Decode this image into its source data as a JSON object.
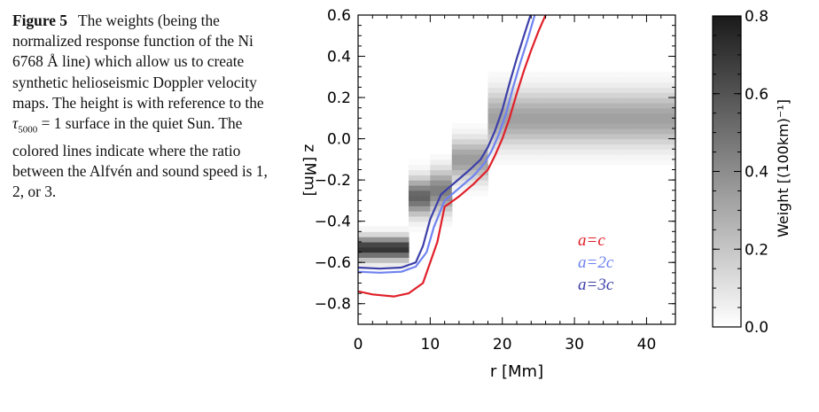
{
  "caption": {
    "label": "Figure 5",
    "part1": "The weights (being the normalized response function of the Ni 6768 Å line) which allow us to create synthetic helioseismic Doppler velocity maps. The height is with reference to the",
    "tau_symbol": "τ",
    "tau_sub": "5000",
    "tau_eq": " = 1 ",
    "part2": "surface in the quiet Sun. The colored lines indicate where the ratio between the Alfvén and sound speed is 1, 2, or 3."
  },
  "chart_data": [
    {
      "type": "heatmap",
      "title": "",
      "xlabel": "r [Mm]",
      "ylabel": "z [Mm]",
      "xlim": [
        0,
        44
      ],
      "ylim": [
        -0.9,
        0.6
      ],
      "xticks": [
        "0",
        "10",
        "20",
        "30",
        "40"
      ],
      "yticks": [
        "0.6",
        "0.4",
        "0.2",
        "0.0",
        "−0.2",
        "−0.4",
        "−0.6",
        "−0.8"
      ],
      "colormap": "white-to-black",
      "vmin": 0.0,
      "vmax": 0.8,
      "weight_regions": [
        {
          "r_range": [
            0,
            7.5
          ],
          "z_center": -0.53,
          "z_halfwidth": 0.05,
          "peak": 0.72
        },
        {
          "r_range": [
            7.5,
            10.5
          ],
          "z_center": -0.28,
          "z_halfwidth": 0.08,
          "peak": 0.55
        },
        {
          "r_range": [
            10.5,
            13
          ],
          "z_center": -0.25,
          "z_halfwidth": 0.09,
          "peak": 0.45
        },
        {
          "r_range": [
            13,
            18
          ],
          "z_center": -0.1,
          "z_halfwidth": 0.09,
          "peak": 0.35
        },
        {
          "r_range": [
            18,
            44
          ],
          "z_center": 0.1,
          "z_halfwidth": 0.12,
          "peak": 0.33
        }
      ],
      "series": [
        {
          "label": "a=c",
          "color": "#e0202a",
          "r": [
            0,
            2,
            5,
            7,
            9,
            11,
            12,
            14,
            16,
            18,
            19,
            20,
            21,
            22,
            23,
            24,
            25,
            26
          ],
          "z": [
            -0.74,
            -0.755,
            -0.765,
            -0.75,
            -0.7,
            -0.5,
            -0.33,
            -0.28,
            -0.22,
            -0.15,
            -0.08,
            0.0,
            0.1,
            0.22,
            0.33,
            0.43,
            0.52,
            0.6
          ]
        },
        {
          "label": "a=2c",
          "color": "#6f82f0",
          "r": [
            0,
            3,
            6,
            8,
            9.5,
            10.5,
            12,
            14,
            16,
            17.5,
            18.5,
            19.5,
            20.5,
            21.5,
            22.5,
            23.5,
            24.5
          ],
          "z": [
            -0.645,
            -0.65,
            -0.645,
            -0.62,
            -0.55,
            -0.43,
            -0.3,
            -0.24,
            -0.18,
            -0.12,
            -0.06,
            0.02,
            0.12,
            0.25,
            0.37,
            0.48,
            0.6
          ]
        },
        {
          "label": "a=3c",
          "color": "#3c3fa8",
          "r": [
            0,
            3,
            6,
            8,
            9,
            10,
            11.5,
            13.5,
            15.5,
            17,
            18,
            19,
            20,
            21,
            22,
            23,
            24
          ],
          "z": [
            -0.625,
            -0.63,
            -0.625,
            -0.6,
            -0.52,
            -0.39,
            -0.27,
            -0.21,
            -0.15,
            -0.1,
            -0.04,
            0.04,
            0.14,
            0.27,
            0.39,
            0.5,
            0.61
          ]
        }
      ]
    },
    {
      "type": "colorbar",
      "ylabel": "Weight [(100km)⁻¹]",
      "ylim": [
        0.0,
        0.8
      ],
      "yticks": [
        "0.0",
        "0.2",
        "0.4",
        "0.6",
        "0.8"
      ],
      "colormap": "white-to-black"
    }
  ]
}
